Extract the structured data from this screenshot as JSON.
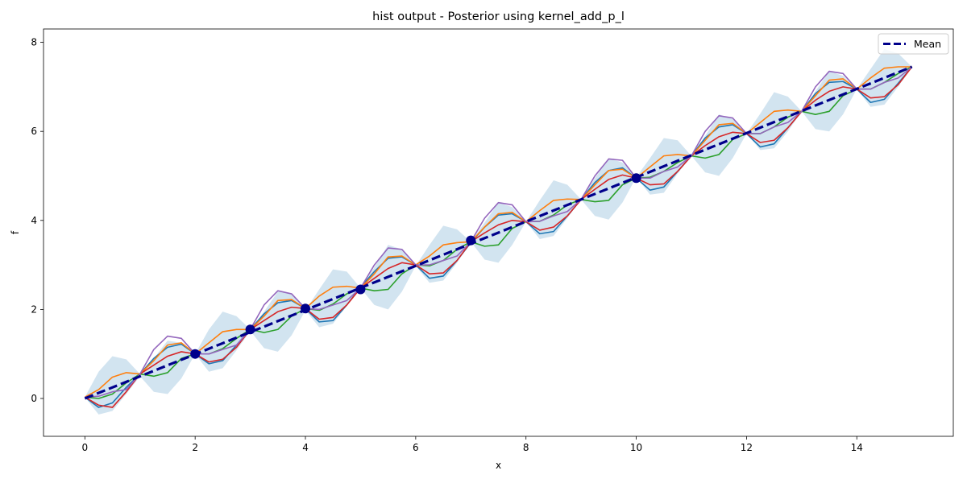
{
  "chart_data": {
    "type": "line",
    "title": "hist output - Posterior using kernel_add_p_l",
    "xlabel": "x",
    "ylabel": "f",
    "xlim": [
      -0.75,
      15.75
    ],
    "ylim": [
      -0.85,
      8.3
    ],
    "xticks": [
      0,
      2,
      4,
      6,
      8,
      10,
      12,
      14
    ],
    "yticks": [
      0,
      2,
      4,
      6,
      8
    ],
    "grid": false,
    "legend": {
      "placement": "top-right",
      "entries": [
        "Mean"
      ]
    },
    "mean": {
      "name": "Mean",
      "color": "#00008b",
      "slope": 0.4967,
      "intercept": 0.0
    },
    "band": {
      "color": "#1f77b4",
      "x": [
        0,
        0.25,
        0.5,
        0.75,
        1.0,
        1.25,
        1.5,
        1.75,
        2.0,
        2.25,
        2.5,
        2.75,
        3.0,
        3.25,
        3.5,
        3.75,
        4.0,
        4.25,
        4.5,
        4.75,
        5.0,
        5.25,
        5.5,
        5.75,
        6.0,
        6.25,
        6.5,
        6.75,
        7.0,
        7.25,
        7.5,
        7.75,
        8.0,
        8.25,
        8.5,
        8.75,
        9.0,
        9.25,
        9.5,
        9.75,
        10.0,
        10.25,
        10.5,
        10.75,
        11.0,
        11.25,
        11.5,
        11.75,
        12.0,
        12.25,
        12.5,
        12.75,
        13.0,
        13.25,
        13.5,
        13.75,
        14.0,
        14.25,
        14.5,
        14.75,
        15.0
      ],
      "lower": [
        0.03,
        -0.36,
        -0.28,
        0.1,
        0.5,
        0.15,
        0.1,
        0.45,
        1.0,
        0.6,
        0.68,
        1.08,
        1.52,
        1.13,
        1.05,
        1.42,
        1.98,
        1.6,
        1.68,
        2.08,
        2.48,
        2.1,
        2.0,
        2.4,
        2.98,
        2.6,
        2.65,
        3.05,
        3.52,
        3.12,
        3.05,
        3.45,
        3.97,
        3.58,
        3.65,
        4.05,
        4.47,
        4.1,
        4.02,
        4.4,
        4.97,
        4.58,
        4.62,
        5.05,
        5.45,
        5.08,
        5.0,
        5.4,
        5.95,
        5.58,
        5.62,
        6.0,
        6.45,
        6.05,
        6.0,
        6.38,
        6.95,
        6.55,
        6.6,
        7.0,
        7.45
      ],
      "upper": [
        0.03,
        0.6,
        0.95,
        0.88,
        0.55,
        0.9,
        1.3,
        1.25,
        1.0,
        1.55,
        1.95,
        1.85,
        1.55,
        1.95,
        2.4,
        2.35,
        1.98,
        2.45,
        2.9,
        2.85,
        2.48,
        2.95,
        3.45,
        3.35,
        2.98,
        3.45,
        3.88,
        3.8,
        3.52,
        3.95,
        4.4,
        4.3,
        3.97,
        4.45,
        4.9,
        4.8,
        4.47,
        4.95,
        5.4,
        5.3,
        4.97,
        5.4,
        5.85,
        5.8,
        5.45,
        5.9,
        6.38,
        6.28,
        5.95,
        6.4,
        6.88,
        6.78,
        6.45,
        6.9,
        7.35,
        7.25,
        6.95,
        7.4,
        7.85,
        7.75,
        7.45
      ]
    },
    "observations": {
      "color": "#00008b",
      "x": [
        2,
        3,
        4,
        5,
        7,
        10
      ],
      "y": [
        1.0,
        1.55,
        2.02,
        2.45,
        3.55,
        4.95
      ]
    },
    "series": [
      {
        "color": "#1f77b4",
        "x": [
          0,
          0.25,
          0.5,
          0.75,
          1.0,
          1.25,
          1.5,
          1.75,
          2.0,
          2.25,
          2.5,
          2.75,
          3.0,
          3.25,
          3.5,
          3.75,
          4.0,
          4.25,
          4.5,
          4.75,
          5.0,
          5.25,
          5.5,
          5.75,
          6.0,
          6.25,
          6.5,
          6.75,
          7.0,
          7.25,
          7.5,
          7.75,
          8.0,
          8.25,
          8.5,
          8.75,
          9.0,
          9.25,
          9.5,
          9.75,
          10.0,
          10.25,
          10.5,
          10.75,
          11.0,
          11.25,
          11.5,
          11.75,
          12.0,
          12.25,
          12.5,
          12.75,
          13.0,
          13.25,
          13.5,
          13.75,
          14.0,
          14.25,
          14.5,
          14.75,
          15.0
        ],
        "y": [
          0.03,
          -0.2,
          -0.1,
          0.25,
          0.55,
          0.9,
          1.15,
          1.22,
          1.0,
          0.78,
          0.85,
          1.2,
          1.55,
          1.9,
          2.15,
          2.2,
          2.02,
          1.72,
          1.75,
          2.1,
          2.5,
          2.85,
          3.15,
          3.18,
          3.0,
          2.7,
          2.75,
          3.1,
          3.5,
          3.85,
          4.12,
          4.15,
          3.97,
          3.7,
          3.75,
          4.1,
          4.47,
          4.85,
          5.12,
          5.18,
          4.95,
          4.68,
          4.75,
          5.1,
          5.45,
          5.85,
          6.1,
          6.15,
          5.95,
          5.65,
          5.72,
          6.08,
          6.45,
          6.85,
          7.1,
          7.12,
          6.95,
          6.65,
          6.72,
          7.08,
          7.45
        ]
      },
      {
        "color": "#ff7f0e",
        "x": [
          0,
          0.25,
          0.5,
          0.75,
          1.0,
          1.25,
          1.5,
          1.75,
          2.0,
          2.25,
          2.5,
          2.75,
          3.0,
          3.25,
          3.5,
          3.75,
          4.0,
          4.25,
          4.5,
          4.75,
          5.0,
          5.25,
          5.5,
          5.75,
          6.0,
          6.25,
          6.5,
          6.75,
          7.0,
          7.25,
          7.5,
          7.75,
          8.0,
          8.25,
          8.5,
          8.75,
          9.0,
          9.25,
          9.5,
          9.75,
          10.0,
          10.25,
          10.5,
          10.75,
          11.0,
          11.25,
          11.5,
          11.75,
          12.0,
          12.25,
          12.5,
          12.75,
          13.0,
          13.25,
          13.5,
          13.75,
          14.0,
          14.25,
          14.5,
          14.75,
          15.0
        ],
        "y": [
          0.03,
          0.2,
          0.48,
          0.58,
          0.55,
          0.85,
          1.2,
          1.25,
          1.0,
          1.25,
          1.5,
          1.55,
          1.55,
          1.85,
          2.2,
          2.22,
          2.02,
          2.3,
          2.5,
          2.52,
          2.48,
          2.8,
          3.18,
          3.2,
          3.0,
          3.2,
          3.45,
          3.5,
          3.52,
          3.85,
          4.15,
          4.18,
          3.97,
          4.22,
          4.45,
          4.48,
          4.47,
          4.8,
          5.12,
          5.15,
          4.95,
          5.2,
          5.45,
          5.48,
          5.45,
          5.8,
          6.15,
          6.18,
          5.95,
          6.2,
          6.45,
          6.48,
          6.45,
          6.8,
          7.15,
          7.18,
          6.95,
          7.2,
          7.42,
          7.45,
          7.45
        ]
      },
      {
        "color": "#2ca02c",
        "x": [
          0,
          0.25,
          0.5,
          0.75,
          1.0,
          1.25,
          1.5,
          1.75,
          2.0,
          2.25,
          2.5,
          2.75,
          3.0,
          3.25,
          3.5,
          3.75,
          4.0,
          4.25,
          4.5,
          4.75,
          5.0,
          5.25,
          5.5,
          5.75,
          6.0,
          6.25,
          6.5,
          6.75,
          7.0,
          7.25,
          7.5,
          7.75,
          8.0,
          8.25,
          8.5,
          8.75,
          9.0,
          9.25,
          9.5,
          9.75,
          10.0,
          10.25,
          10.5,
          10.75,
          11.0,
          11.25,
          11.5,
          11.75,
          12.0,
          12.25,
          12.5,
          12.75,
          13.0,
          13.25,
          13.5,
          13.75,
          14.0,
          14.25,
          14.5,
          14.75,
          15.0
        ],
        "y": [
          0.03,
          0.0,
          0.1,
          0.35,
          0.55,
          0.5,
          0.58,
          0.9,
          1.0,
          1.0,
          1.12,
          1.35,
          1.55,
          1.48,
          1.55,
          1.85,
          2.02,
          1.98,
          2.12,
          2.35,
          2.48,
          2.42,
          2.45,
          2.8,
          3.0,
          2.98,
          3.1,
          3.35,
          3.52,
          3.42,
          3.45,
          3.82,
          3.97,
          3.98,
          4.12,
          4.35,
          4.47,
          4.42,
          4.45,
          4.8,
          4.95,
          4.97,
          5.1,
          5.3,
          5.45,
          5.4,
          5.48,
          5.82,
          5.95,
          5.95,
          6.1,
          6.32,
          6.45,
          6.38,
          6.45,
          6.8,
          6.95,
          6.95,
          7.1,
          7.3,
          7.45
        ]
      },
      {
        "color": "#d62728",
        "x": [
          0,
          0.25,
          0.5,
          0.75,
          1.0,
          1.25,
          1.5,
          1.75,
          2.0,
          2.25,
          2.5,
          2.75,
          3.0,
          3.25,
          3.5,
          3.75,
          4.0,
          4.25,
          4.5,
          4.75,
          5.0,
          5.25,
          5.5,
          5.75,
          6.0,
          6.25,
          6.5,
          6.75,
          7.0,
          7.25,
          7.5,
          7.75,
          8.0,
          8.25,
          8.5,
          8.75,
          9.0,
          9.25,
          9.5,
          9.75,
          10.0,
          10.25,
          10.5,
          10.75,
          11.0,
          11.25,
          11.5,
          11.75,
          12.0,
          12.25,
          12.5,
          12.75,
          13.0,
          13.25,
          13.5,
          13.75,
          14.0,
          14.25,
          14.5,
          14.75,
          15.0
        ],
        "y": [
          0.03,
          -0.15,
          -0.2,
          0.15,
          0.55,
          0.75,
          0.95,
          1.05,
          1.0,
          0.82,
          0.88,
          1.15,
          1.55,
          1.75,
          1.95,
          2.05,
          2.02,
          1.78,
          1.82,
          2.1,
          2.48,
          2.7,
          2.92,
          3.05,
          3.0,
          2.8,
          2.82,
          3.1,
          3.52,
          3.72,
          3.9,
          4.0,
          3.97,
          3.78,
          3.85,
          4.1,
          4.47,
          4.7,
          4.92,
          5.02,
          4.95,
          4.8,
          4.82,
          5.1,
          5.45,
          5.68,
          5.88,
          5.98,
          5.95,
          5.75,
          5.8,
          6.08,
          6.45,
          6.7,
          6.9,
          7.0,
          6.95,
          6.75,
          6.78,
          7.05,
          7.45
        ]
      },
      {
        "color": "#9467bd",
        "x": [
          0,
          0.25,
          0.5,
          0.75,
          1.0,
          1.25,
          1.5,
          1.75,
          2.0,
          2.25,
          2.5,
          2.75,
          3.0,
          3.25,
          3.5,
          3.75,
          4.0,
          4.25,
          4.5,
          4.75,
          5.0,
          5.25,
          5.5,
          5.75,
          6.0,
          6.25,
          6.5,
          6.75,
          7.0,
          7.25,
          7.5,
          7.75,
          8.0,
          8.25,
          8.5,
          8.75,
          9.0,
          9.25,
          9.5,
          9.75,
          10.0,
          10.25,
          10.5,
          10.75,
          11.0,
          11.25,
          11.5,
          11.75,
          12.0,
          12.25,
          12.5,
          12.75,
          13.0,
          13.25,
          13.5,
          13.75,
          14.0,
          14.25,
          14.5,
          14.75,
          15.0
        ],
        "y": [
          0.03,
          0.05,
          0.15,
          0.2,
          0.55,
          1.1,
          1.4,
          1.35,
          1.0,
          1.0,
          1.1,
          1.2,
          1.55,
          2.1,
          2.42,
          2.35,
          2.02,
          2.0,
          2.1,
          2.2,
          2.48,
          3.0,
          3.38,
          3.35,
          3.0,
          3.0,
          3.1,
          3.2,
          3.52,
          4.05,
          4.4,
          4.35,
          3.97,
          3.98,
          4.1,
          4.2,
          4.47,
          5.0,
          5.38,
          5.35,
          4.95,
          4.95,
          5.1,
          5.2,
          5.45,
          6.0,
          6.35,
          6.3,
          5.95,
          5.95,
          6.1,
          6.2,
          6.45,
          7.0,
          7.35,
          7.3,
          6.95,
          6.95,
          7.1,
          7.2,
          7.45
        ]
      }
    ]
  }
}
